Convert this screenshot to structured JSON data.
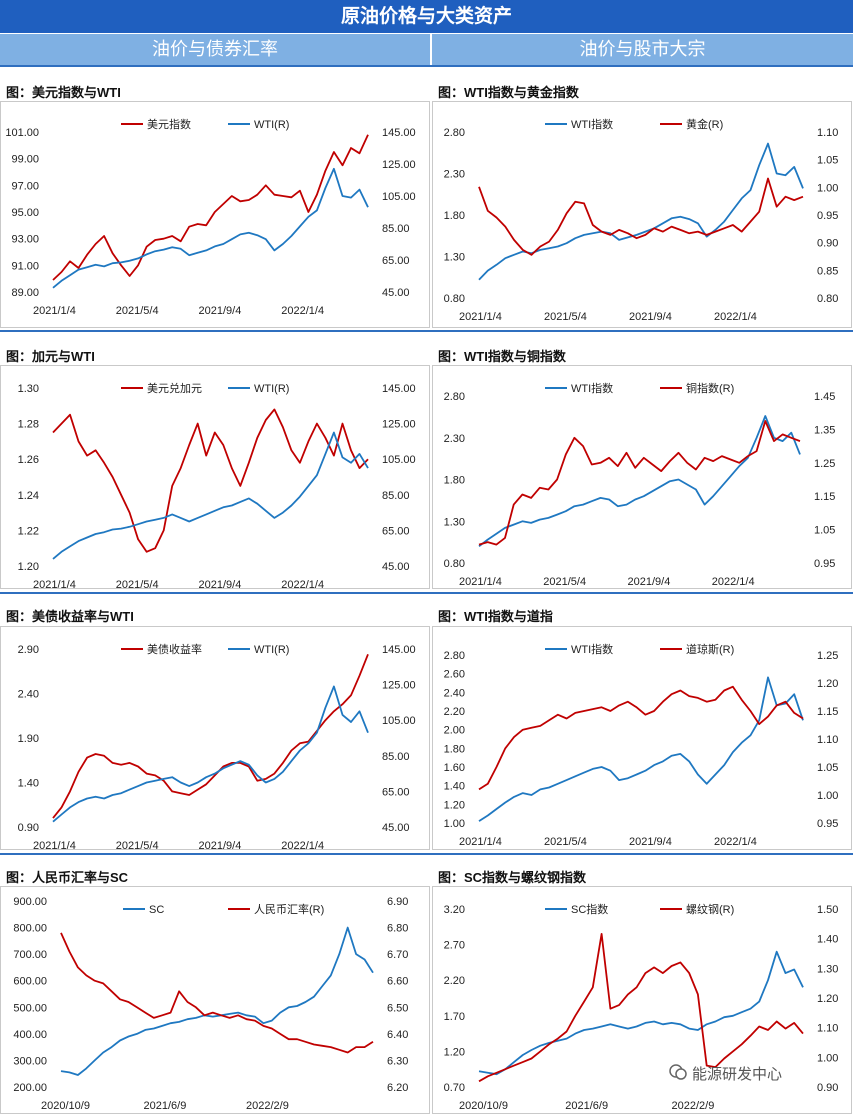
{
  "header": {
    "title": "原油价格与大类资产"
  },
  "subheaders": {
    "left": "油价与债券汇率",
    "right": "油价与股市大宗"
  },
  "watermark": "能源研发中心",
  "colors": {
    "red": "#c00000",
    "blue": "#1f78c1",
    "header_bg": "#1f5fbf",
    "subheader_bg": "#7fb0e3"
  },
  "panels": [
    {
      "id": "usd",
      "title": "图：美元指数与WTI"
    },
    {
      "id": "gold",
      "title": "图：WTI指数与黄金指数"
    },
    {
      "id": "cad",
      "title": "图：加元与WTI"
    },
    {
      "id": "copper",
      "title": "图：WTI指数与铜指数"
    },
    {
      "id": "yield",
      "title": "图：美债收益率与WTI"
    },
    {
      "id": "dow",
      "title": "图：WTI指数与道指"
    },
    {
      "id": "cny",
      "title": "图：人民币汇率与SC"
    },
    {
      "id": "rebar",
      "title": "图：SC指数与螺纹钢指数"
    }
  ],
  "chart_data": [
    {
      "id": "usd",
      "type": "line",
      "x_ticks": [
        "2021/1/4",
        "2021/5/4",
        "2021/9/4",
        "2022/1/4"
      ],
      "y_left": {
        "ylim": [
          89.0,
          101.0
        ],
        "ticks": [
          "89.00",
          "91.00",
          "93.00",
          "95.00",
          "97.00",
          "99.00",
          "101.00"
        ]
      },
      "y_right": {
        "ylim": [
          45.0,
          145.0
        ],
        "ticks": [
          "45.00",
          "65.00",
          "85.00",
          "105.00",
          "125.00",
          "145.00"
        ]
      },
      "legend": [
        "美元指数",
        "WTI(R)"
      ],
      "series": [
        {
          "axis": "left",
          "color": "#c00000",
          "values": [
            89.9,
            90.5,
            91.3,
            90.8,
            91.8,
            92.6,
            93.2,
            91.9,
            91.0,
            90.2,
            91.0,
            92.4,
            92.9,
            93.0,
            93.2,
            92.8,
            93.9,
            94.1,
            94.0,
            95.0,
            95.6,
            96.2,
            95.8,
            95.9,
            96.3,
            97.0,
            96.3,
            96.2,
            96.1,
            96.6,
            95.0,
            96.3,
            98.1,
            99.5,
            98.5,
            99.8,
            99.4,
            100.8
          ]
        },
        {
          "axis": "right",
          "color": "#1f78c1",
          "values": [
            47.6,
            52.0,
            55.5,
            59.0,
            60.5,
            62.0,
            61.0,
            63.0,
            63.5,
            64.5,
            66.0,
            68.5,
            70.5,
            71.5,
            73.0,
            72.0,
            68.0,
            69.5,
            71.0,
            73.5,
            75.0,
            78.0,
            81.0,
            82.0,
            80.5,
            78.0,
            71.0,
            75.0,
            80.0,
            86.0,
            92.0,
            96.0,
            110.0,
            122.0,
            105.0,
            104.0,
            109.0,
            98.0
          ]
        }
      ]
    },
    {
      "id": "gold",
      "type": "line",
      "x_ticks": [
        "2021/1/4",
        "2021/5/4",
        "2021/9/4",
        "2022/1/4"
      ],
      "y_left": {
        "ylim": [
          0.8,
          2.8
        ],
        "ticks": [
          "0.80",
          "1.30",
          "1.80",
          "2.30",
          "2.80"
        ]
      },
      "y_right": {
        "ylim": [
          0.8,
          1.1
        ],
        "ticks": [
          "0.80",
          "0.85",
          "0.90",
          "0.95",
          "1.00",
          "1.05",
          "1.10"
        ]
      },
      "legend": [
        "WTI指数",
        "黄金(R)"
      ],
      "series": [
        {
          "axis": "left",
          "color": "#1f78c1",
          "values": [
            1.02,
            1.13,
            1.2,
            1.28,
            1.32,
            1.36,
            1.34,
            1.38,
            1.4,
            1.42,
            1.46,
            1.52,
            1.56,
            1.58,
            1.6,
            1.58,
            1.5,
            1.53,
            1.56,
            1.6,
            1.64,
            1.7,
            1.76,
            1.78,
            1.75,
            1.7,
            1.54,
            1.62,
            1.72,
            1.86,
            2.0,
            2.1,
            2.4,
            2.66,
            2.3,
            2.28,
            2.38,
            2.12
          ]
        },
        {
          "axis": "left",
          "color": "#c00000",
          "values": [
            2.14,
            1.85,
            1.77,
            1.66,
            1.5,
            1.38,
            1.32,
            1.42,
            1.48,
            1.62,
            1.82,
            1.96,
            1.94,
            1.68,
            1.6,
            1.56,
            1.62,
            1.58,
            1.52,
            1.56,
            1.64,
            1.6,
            1.66,
            1.62,
            1.58,
            1.6,
            1.56,
            1.6,
            1.64,
            1.68,
            1.6,
            1.72,
            1.84,
            2.24,
            1.9,
            2.02,
            1.98,
            2.02
          ]
        }
      ]
    },
    {
      "id": "cad",
      "type": "line",
      "x_ticks": [
        "2021/1/4",
        "2021/5/4",
        "2021/9/4",
        "2022/1/4"
      ],
      "y_left": {
        "ylim": [
          1.2,
          1.3
        ],
        "ticks": [
          "1.20",
          "1.22",
          "1.24",
          "1.26",
          "1.28",
          "1.30"
        ]
      },
      "y_right": {
        "ylim": [
          45.0,
          145.0
        ],
        "ticks": [
          "45.00",
          "65.00",
          "85.00",
          "105.00",
          "125.00",
          "145.00"
        ]
      },
      "legend": [
        "美元兑加元",
        "WTI(R)"
      ],
      "series": [
        {
          "axis": "left",
          "color": "#c00000",
          "values": [
            1.275,
            1.28,
            1.285,
            1.27,
            1.262,
            1.265,
            1.258,
            1.25,
            1.24,
            1.23,
            1.215,
            1.208,
            1.21,
            1.22,
            1.245,
            1.255,
            1.268,
            1.28,
            1.262,
            1.275,
            1.268,
            1.255,
            1.245,
            1.258,
            1.272,
            1.282,
            1.288,
            1.278,
            1.265,
            1.258,
            1.27,
            1.28,
            1.272,
            1.262,
            1.28,
            1.265,
            1.255,
            1.26
          ]
        },
        {
          "axis": "right",
          "color": "#1f78c1",
          "values": [
            49.0,
            53.0,
            56.0,
            59.0,
            61.0,
            63.0,
            64.0,
            65.5,
            66.0,
            67.0,
            68.5,
            70.0,
            71.0,
            72.0,
            74.0,
            72.0,
            70.0,
            72.0,
            74.0,
            76.0,
            78.0,
            79.0,
            81.0,
            83.0,
            80.0,
            76.0,
            72.0,
            75.0,
            79.0,
            84.0,
            90.0,
            96.0,
            108.0,
            120.0,
            106.0,
            103.0,
            108.0,
            100.0
          ]
        }
      ]
    },
    {
      "id": "copper",
      "type": "line",
      "x_ticks": [
        "2021/1/4",
        "2021/5/4",
        "2021/9/4",
        "2022/1/4"
      ],
      "y_left": {
        "ylim": [
          0.8,
          2.8
        ],
        "ticks": [
          "0.80",
          "1.30",
          "1.80",
          "2.30",
          "2.80"
        ]
      },
      "y_right": {
        "ylim": [
          0.95,
          1.45
        ],
        "ticks": [
          "0.95",
          "1.05",
          "1.15",
          "1.25",
          "1.35",
          "1.45"
        ]
      },
      "legend": [
        "WTI指数",
        "铜指数(R)"
      ],
      "series": [
        {
          "axis": "left",
          "color": "#1f78c1",
          "values": [
            1.0,
            1.08,
            1.15,
            1.22,
            1.26,
            1.3,
            1.28,
            1.32,
            1.34,
            1.38,
            1.42,
            1.48,
            1.5,
            1.54,
            1.58,
            1.56,
            1.48,
            1.5,
            1.56,
            1.6,
            1.66,
            1.72,
            1.78,
            1.8,
            1.74,
            1.68,
            1.5,
            1.6,
            1.72,
            1.84,
            1.96,
            2.06,
            2.3,
            2.56,
            2.3,
            2.26,
            2.36,
            2.1
          ]
        },
        {
          "axis": "left",
          "color": "#c00000",
          "values": [
            1.02,
            1.05,
            1.02,
            1.1,
            1.5,
            1.62,
            1.58,
            1.7,
            1.68,
            1.8,
            2.1,
            2.3,
            2.2,
            1.98,
            2.0,
            2.06,
            1.96,
            2.12,
            1.94,
            2.06,
            1.98,
            1.9,
            2.02,
            2.12,
            2.0,
            1.92,
            2.06,
            2.02,
            2.08,
            2.04,
            2.0,
            2.08,
            2.14,
            2.5,
            2.26,
            2.34,
            2.3,
            2.26
          ]
        }
      ]
    },
    {
      "id": "yield",
      "type": "line",
      "x_ticks": [
        "2021/1/4",
        "2021/5/4",
        "2021/9/4",
        "2022/1/4"
      ],
      "y_left": {
        "ylim": [
          0.9,
          2.9
        ],
        "ticks": [
          "0.90",
          "1.40",
          "1.90",
          "2.40",
          "2.90"
        ]
      },
      "y_right": {
        "ylim": [
          45.0,
          145.0
        ],
        "ticks": [
          "45.00",
          "65.00",
          "85.00",
          "105.00",
          "125.00",
          "145.00"
        ]
      },
      "legend": [
        "美债收益率",
        "WTI(R)"
      ],
      "series": [
        {
          "axis": "left",
          "color": "#c00000",
          "values": [
            1.0,
            1.12,
            1.3,
            1.52,
            1.68,
            1.72,
            1.7,
            1.62,
            1.6,
            1.62,
            1.58,
            1.5,
            1.48,
            1.42,
            1.3,
            1.28,
            1.26,
            1.32,
            1.38,
            1.48,
            1.58,
            1.62,
            1.62,
            1.58,
            1.42,
            1.44,
            1.5,
            1.62,
            1.76,
            1.84,
            1.86,
            1.98,
            2.1,
            2.2,
            2.28,
            2.38,
            2.6,
            2.84
          ]
        },
        {
          "axis": "right",
          "color": "#1f78c1",
          "values": [
            48.0,
            52.0,
            56.0,
            59.0,
            61.0,
            62.0,
            61.0,
            63.0,
            64.0,
            66.0,
            68.0,
            70.0,
            71.0,
            72.0,
            73.0,
            70.0,
            68.0,
            70.0,
            73.0,
            75.0,
            78.0,
            80.0,
            82.0,
            80.0,
            74.0,
            70.0,
            72.0,
            76.0,
            82.0,
            88.0,
            92.0,
            98.0,
            112.0,
            124.0,
            108.0,
            104.0,
            110.0,
            98.0
          ]
        }
      ]
    },
    {
      "id": "dow",
      "type": "line",
      "x_ticks": [
        "2021/1/4",
        "2021/5/4",
        "2021/9/4",
        "2022/1/4"
      ],
      "y_left": {
        "ylim": [
          1.0,
          2.8
        ],
        "ticks": [
          "1.00",
          "1.20",
          "1.40",
          "1.60",
          "1.80",
          "2.00",
          "2.20",
          "2.40",
          "2.60",
          "2.80"
        ]
      },
      "y_right": {
        "ylim": [
          0.95,
          1.25
        ],
        "ticks": [
          "0.95",
          "1.00",
          "1.05",
          "1.10",
          "1.15",
          "1.20",
          "1.25"
        ]
      },
      "legend": [
        "WTI指数",
        "道琼斯(R)"
      ],
      "series": [
        {
          "axis": "left",
          "color": "#1f78c1",
          "values": [
            1.02,
            1.08,
            1.15,
            1.22,
            1.28,
            1.32,
            1.3,
            1.36,
            1.38,
            1.42,
            1.46,
            1.5,
            1.54,
            1.58,
            1.6,
            1.56,
            1.46,
            1.48,
            1.52,
            1.56,
            1.62,
            1.66,
            1.72,
            1.74,
            1.66,
            1.52,
            1.42,
            1.52,
            1.62,
            1.76,
            1.86,
            1.94,
            2.1,
            2.56,
            2.26,
            2.28,
            2.38,
            2.1
          ]
        },
        {
          "axis": "left",
          "color": "#c00000",
          "values": [
            1.36,
            1.42,
            1.6,
            1.8,
            1.92,
            2.0,
            2.02,
            2.04,
            2.1,
            2.16,
            2.12,
            2.18,
            2.2,
            2.22,
            2.24,
            2.2,
            2.26,
            2.3,
            2.24,
            2.16,
            2.2,
            2.3,
            2.38,
            2.42,
            2.36,
            2.34,
            2.3,
            2.32,
            2.42,
            2.46,
            2.32,
            2.2,
            2.06,
            2.14,
            2.26,
            2.3,
            2.18,
            2.12
          ]
        }
      ]
    },
    {
      "id": "cny",
      "type": "line",
      "x_ticks": [
        "2020/10/9",
        "2021/6/9",
        "2022/2/9"
      ],
      "y_left": {
        "ylim": [
          200.0,
          900.0
        ],
        "ticks": [
          "200.00",
          "300.00",
          "400.00",
          "500.00",
          "600.00",
          "700.00",
          "800.00",
          "900.00"
        ]
      },
      "y_right": {
        "ylim": [
          6.2,
          6.9
        ],
        "ticks": [
          "6.20",
          "6.30",
          "6.40",
          "6.50",
          "6.60",
          "6.70",
          "6.80",
          "6.90"
        ]
      },
      "legend": [
        "SC",
        "人民币汇率(R)"
      ],
      "series": [
        {
          "axis": "left",
          "color": "#1f78c1",
          "values": [
            260.0,
            255.0,
            245.0,
            270.0,
            300.0,
            330.0,
            350.0,
            375.0,
            390.0,
            400.0,
            415.0,
            420.0,
            430.0,
            440.0,
            445.0,
            455.0,
            460.0,
            470.0,
            465.0,
            470.0,
            475.0,
            480.0,
            470.0,
            465.0,
            440.0,
            450.0,
            480.0,
            500.0,
            505.0,
            520.0,
            540.0,
            580.0,
            620.0,
            700.0,
            800.0,
            700.0,
            680.0,
            630.0
          ]
        },
        {
          "axis": "left",
          "color": "#c00000",
          "values": [
            780.0,
            710.0,
            650.0,
            620.0,
            600.0,
            590.0,
            560.0,
            530.0,
            520.0,
            500.0,
            480.0,
            460.0,
            470.0,
            480.0,
            560.0,
            520.0,
            500.0,
            470.0,
            480.0,
            470.0,
            460.0,
            470.0,
            455.0,
            450.0,
            430.0,
            420.0,
            400.0,
            380.0,
            380.0,
            370.0,
            360.0,
            355.0,
            350.0,
            340.0,
            330.0,
            350.0,
            350.0,
            370.0
          ]
        }
      ]
    },
    {
      "id": "rebar",
      "type": "line",
      "x_ticks": [
        "2020/10/9",
        "2021/6/9",
        "2022/2/9"
      ],
      "y_left": {
        "ylim": [
          0.7,
          3.2
        ],
        "ticks": [
          "0.70",
          "1.20",
          "1.70",
          "2.20",
          "2.70",
          "3.20"
        ]
      },
      "y_right": {
        "ylim": [
          0.9,
          1.5
        ],
        "ticks": [
          "0.90",
          "1.00",
          "1.10",
          "1.20",
          "1.30",
          "1.40",
          "1.50"
        ]
      },
      "legend": [
        "SC指数",
        "螺纹钢(R)"
      ],
      "series": [
        {
          "axis": "left",
          "color": "#1f78c1",
          "values": [
            0.92,
            0.9,
            0.88,
            0.95,
            1.05,
            1.15,
            1.22,
            1.28,
            1.32,
            1.35,
            1.38,
            1.45,
            1.5,
            1.52,
            1.55,
            1.58,
            1.55,
            1.52,
            1.55,
            1.6,
            1.62,
            1.58,
            1.6,
            1.58,
            1.52,
            1.5,
            1.58,
            1.62,
            1.68,
            1.7,
            1.75,
            1.8,
            1.9,
            2.2,
            2.6,
            2.3,
            2.35,
            2.1
          ]
        },
        {
          "axis": "left",
          "color": "#c00000",
          "values": [
            0.78,
            0.85,
            0.9,
            0.95,
            1.0,
            1.05,
            1.1,
            1.2,
            1.3,
            1.38,
            1.48,
            1.7,
            1.9,
            2.1,
            2.85,
            1.8,
            1.85,
            2.0,
            2.1,
            2.3,
            2.38,
            2.3,
            2.4,
            2.45,
            2.3,
            2.0,
            1.0,
            0.98,
            1.1,
            1.2,
            1.3,
            1.42,
            1.55,
            1.5,
            1.62,
            1.52,
            1.6,
            1.45
          ]
        }
      ]
    }
  ]
}
